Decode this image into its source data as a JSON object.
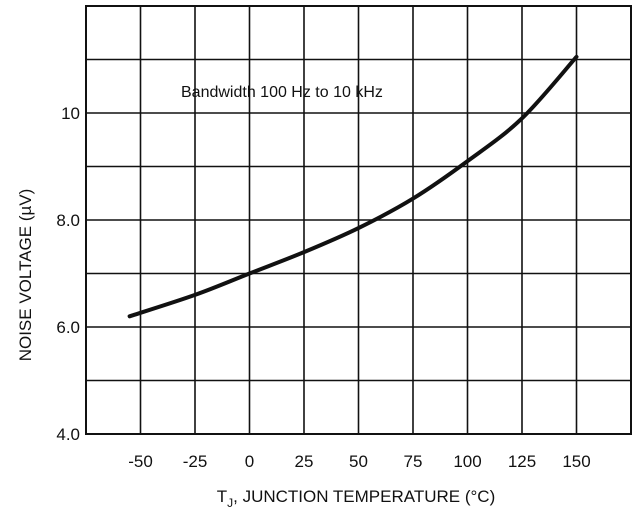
{
  "chart_data": {
    "type": "line",
    "title": "",
    "annotation": "Bandwidth 100 Hz to 10 kHz",
    "xlabel": {
      "prefix": "T",
      "subscript": "J",
      "rest": ", JUNCTION TEMPERATURE (°C)"
    },
    "ylabel": {
      "before": "NOISE VOLTAGE (",
      "mu": "µ",
      "after": "V)"
    },
    "xlim": [
      -75,
      175
    ],
    "ylim": [
      4.0,
      12.0
    ],
    "x_ticks": [
      -50,
      -25,
      0,
      25,
      50,
      75,
      100,
      125,
      150
    ],
    "x_tick_labels": [
      "-50",
      "-25",
      "0",
      "25",
      "50",
      "75",
      "100",
      "125",
      "150"
    ],
    "y_ticks": [
      4.0,
      6.0,
      8.0,
      10
    ],
    "y_tick_labels": [
      "4.0",
      "6.0",
      "8.0",
      "10"
    ],
    "y_minor_gridlines": [
      5.0,
      7.0,
      9.0,
      11.0
    ],
    "grid": true,
    "series": [
      {
        "x": [
          -55,
          -25,
          0,
          25,
          50,
          75,
          100,
          125,
          150
        ],
        "y": [
          6.2,
          6.6,
          7.0,
          7.4,
          7.85,
          8.4,
          9.1,
          9.9,
          11.05
        ]
      }
    ],
    "colors": {
      "line": "#111111",
      "grid": "#111111"
    }
  }
}
